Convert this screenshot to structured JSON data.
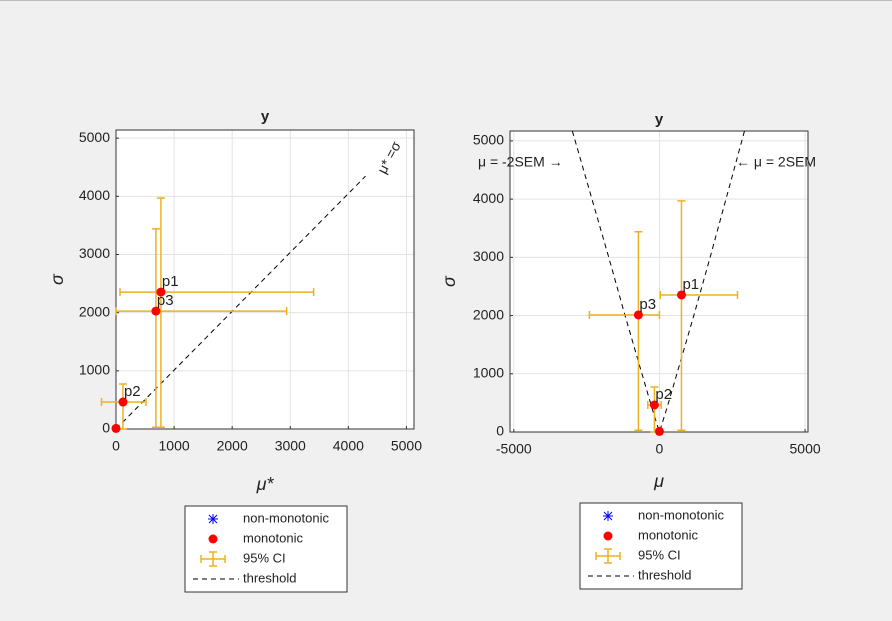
{
  "chart_data": [
    {
      "type": "errorbar-scatter",
      "title": "y",
      "xlabel": "μ*",
      "ylabel": "σ",
      "xlim": [
        0,
        5130
      ],
      "ylim": [
        0,
        5140
      ],
      "xticks": [
        0,
        1000,
        2000,
        3000,
        4000,
        5000
      ],
      "yticks": [
        0,
        1000,
        2000,
        3000,
        4000,
        5000
      ],
      "grid": true,
      "points": {
        "labels": [
          "p1",
          "p2",
          "p3",
          null
        ],
        "x": [
          773,
          120,
          687,
          0
        ],
        "y": [
          2354,
          464,
          2027,
          10
        ],
        "x_low": [
          69,
          -250,
          0,
          0
        ],
        "x_high": [
          3402,
          516,
          2938,
          30
        ],
        "y_low": [
          30,
          0,
          30,
          0
        ],
        "y_high": [
          3970,
          773,
          3440,
          40
        ]
      },
      "threshold": {
        "x": [
          0,
          4296
        ],
        "y": [
          0,
          4347
        ]
      },
      "annotations": [
        "μ* =σ"
      ],
      "legend": [
        {
          "name": "non-monotonic",
          "color": "#0000ff",
          "marker": "asterisk"
        },
        {
          "name": "monotonic",
          "color": "#ff0000",
          "marker": "dot"
        },
        {
          "name": "95% CI",
          "color": "#edb120",
          "marker": "errorbar"
        },
        {
          "name": "threshold",
          "color": "#000000",
          "marker": "dashed"
        }
      ]
    },
    {
      "type": "errorbar-scatter",
      "title": "y",
      "xlabel": "μ",
      "ylabel": "σ",
      "xlim": [
        -5130,
        5100
      ],
      "ylim": [
        0,
        5170
      ],
      "xticks": [
        -5000,
        0,
        5000
      ],
      "yticks": [
        0,
        1000,
        2000,
        3000,
        4000,
        5000
      ],
      "grid": true,
      "points": {
        "labels": [
          "p1",
          "p2",
          "p3",
          null
        ],
        "x": [
          756,
          -172,
          -722,
          0
        ],
        "y": [
          2354,
          464,
          2010,
          10
        ],
        "x_low": [
          30,
          -400,
          -2405,
          0
        ],
        "x_high": [
          2680,
          60,
          0,
          30
        ],
        "y_low": [
          30,
          0,
          30,
          0
        ],
        "y_high": [
          3970,
          773,
          3440,
          40
        ]
      },
      "threshold": {
        "x": [
          -2990,
          -1740,
          -1180,
          -600,
          -250,
          0,
          250,
          600,
          1180,
          1740,
          2920
        ],
        "y": [
          5170,
          3000,
          2000,
          1000,
          400,
          0,
          400,
          1000,
          2000,
          3000,
          5170
        ]
      },
      "annotations": [
        "μ = -2SEM →",
        "← μ = 2SEM"
      ],
      "legend": [
        {
          "name": "non-monotonic",
          "color": "#0000ff",
          "marker": "asterisk"
        },
        {
          "name": "monotonic",
          "color": "#ff0000",
          "marker": "dot"
        },
        {
          "name": "95% CI",
          "color": "#edb120",
          "marker": "errorbar"
        },
        {
          "name": "threshold",
          "color": "#000000",
          "marker": "dashed"
        }
      ]
    }
  ]
}
